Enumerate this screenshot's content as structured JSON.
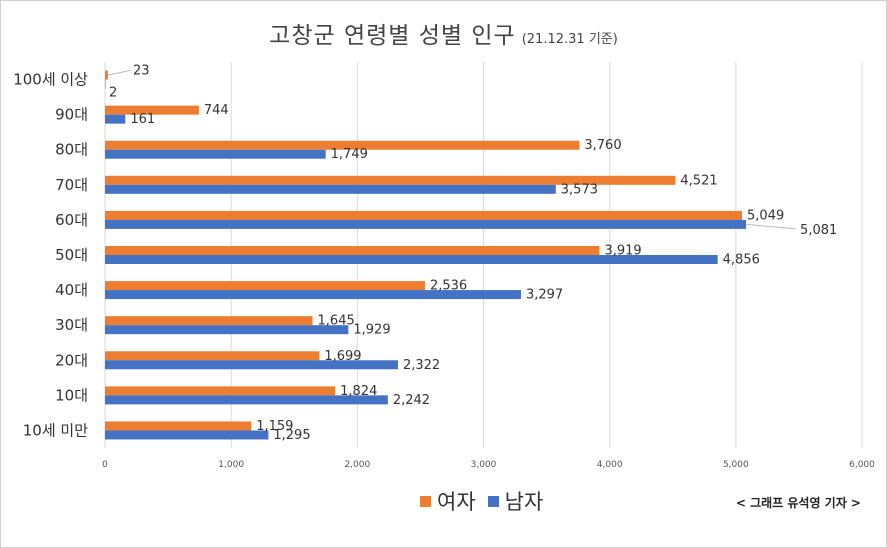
{
  "title": {
    "main": "고창군 연령별 성별 인구",
    "sub": "(21.12.31 기준)"
  },
  "credit": "< 그래프 유석영 기자 >",
  "colors": {
    "female": "#ED7D31",
    "male": "#4472C4",
    "grid": "#d9d9d9"
  },
  "chart_data": {
    "type": "bar",
    "orientation": "horizontal",
    "categories": [
      "100세 이상",
      "90대",
      "80대",
      "70대",
      "60대",
      "50대",
      "40대",
      "30대",
      "20대",
      "10대",
      "10세 미만"
    ],
    "series": [
      {
        "name": "여자",
        "color": "#ED7D31",
        "values": [
          23,
          744,
          3760,
          4521,
          5049,
          3919,
          2536,
          1645,
          1699,
          1824,
          1159
        ]
      },
      {
        "name": "남자",
        "color": "#4472C4",
        "values": [
          2,
          161,
          1749,
          3573,
          5081,
          4856,
          3297,
          1929,
          2322,
          2242,
          1295
        ]
      }
    ],
    "xlim": [
      0,
      6000
    ],
    "x_ticks": [
      "0",
      "1,000",
      "2,000",
      "3,000",
      "4,000",
      "5,000",
      "6,000"
    ],
    "data_labels": {
      "female": [
        "23",
        "744",
        "3,760",
        "4,521",
        "5,049",
        "3,919",
        "2,536",
        "1,645",
        "1,699",
        "1,824",
        "1,159"
      ],
      "male": [
        "2",
        "161",
        "1,749",
        "3,573",
        "5,081",
        "4,856",
        "3,297",
        "1,929",
        "2,322",
        "2,242",
        "1,295"
      ]
    },
    "grid": true,
    "legend": "bottom"
  }
}
